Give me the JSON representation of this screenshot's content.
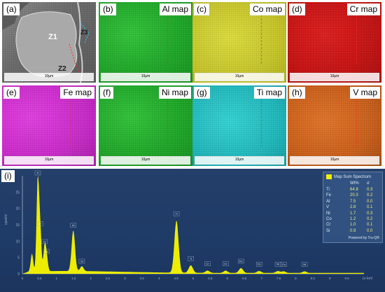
{
  "panels": [
    {
      "label": "(a)",
      "tag": "",
      "style": "sem",
      "scale": "10µm",
      "zones": [
        "Z1",
        "Z2",
        "Z3"
      ]
    },
    {
      "label": "(b)",
      "tag": "Al map",
      "style": "green",
      "scale": "10µm"
    },
    {
      "label": "(c)",
      "tag": "Co map",
      "style": "yellow",
      "scale": "10µm"
    },
    {
      "label": "(d)",
      "tag": "Cr map",
      "style": "red",
      "scale": "10µm"
    },
    {
      "label": "(e)",
      "tag": "Fe map",
      "style": "magenta",
      "scale": "10µm"
    },
    {
      "label": "(f)",
      "tag": "Ni map",
      "style": "green",
      "scale": "10µm"
    },
    {
      "label": "(g)",
      "tag": "Ti map",
      "style": "cyan",
      "scale": "10µm"
    },
    {
      "label": "(h)",
      "tag": "V map",
      "style": "orange",
      "scale": "10µm"
    }
  ],
  "spectrum": {
    "label": "(i)",
    "legend_title": "Map Sum Spectrum",
    "col_wt": "Wt%",
    "col_sigma": "σ",
    "rows": [
      {
        "el": "Ti",
        "wt": "64.8",
        "sg": "0.3"
      },
      {
        "el": "Fe",
        "wt": "20.3",
        "sg": "0.2"
      },
      {
        "el": "Al",
        "wt": "7.5",
        "sg": "0.0"
      },
      {
        "el": "V",
        "wt": "2.8",
        "sg": "0.1"
      },
      {
        "el": "Ni",
        "wt": "1.7",
        "sg": "0.3"
      },
      {
        "el": "Co",
        "wt": "1.2",
        "sg": "0.2"
      },
      {
        "el": "Cr",
        "wt": "1.0",
        "sg": "0.1"
      },
      {
        "el": "Si",
        "wt": "0.9",
        "sg": "0.0"
      }
    ],
    "powered": "Powered by Tru-Q®",
    "ylabel": "cps/eV",
    "xunit": "keV"
  },
  "chart_data": {
    "type": "area",
    "title": "Map Sum Spectrum",
    "xlabel": "keV",
    "ylabel": "cps/eV",
    "xlim": [
      0,
      10
    ],
    "ylim": [
      0,
      30
    ],
    "xticks": [
      0,
      0.5,
      1,
      1.5,
      2,
      2.5,
      3,
      3.5,
      4,
      4.5,
      5,
      5.5,
      6,
      6.5,
      7,
      7.5,
      8,
      8.5,
      9,
      9.5,
      10
    ],
    "yticks": [
      0,
      5,
      10,
      15,
      20,
      25
    ],
    "peaks": [
      {
        "x": 0.28,
        "y": 5.5,
        "label": ""
      },
      {
        "x": 0.45,
        "y": 28.5,
        "label": "Ti"
      },
      {
        "x": 0.52,
        "y": 13.0,
        "label": "V"
      },
      {
        "x": 0.65,
        "y": 7.5,
        "label": "Cr"
      },
      {
        "x": 0.71,
        "y": 4.5,
        "label": "Fe"
      },
      {
        "x": 1.49,
        "y": 12.5,
        "label": "Al"
      },
      {
        "x": 1.74,
        "y": 1.5,
        "label": "Si"
      },
      {
        "x": 4.51,
        "y": 16.0,
        "label": "Ti"
      },
      {
        "x": 4.93,
        "y": 2.3,
        "label": "Ti"
      },
      {
        "x": 5.42,
        "y": 0.7,
        "label": "Cr"
      },
      {
        "x": 5.95,
        "y": 0.7,
        "label": "Cr"
      },
      {
        "x": 6.4,
        "y": 1.5,
        "label": "Fe"
      },
      {
        "x": 6.93,
        "y": 0.6,
        "label": "Co"
      },
      {
        "x": 7.48,
        "y": 0.6,
        "label": "Ni"
      },
      {
        "x": 7.65,
        "y": 0.5,
        "label": "Co"
      },
      {
        "x": 8.26,
        "y": 0.5,
        "label": "Ni"
      }
    ],
    "grid": false,
    "legend": "top-right"
  },
  "colors": {
    "spectrum_fill": "#eded00",
    "spectrum_bg": "#1f3c68",
    "axis": "#9fb3cc"
  }
}
